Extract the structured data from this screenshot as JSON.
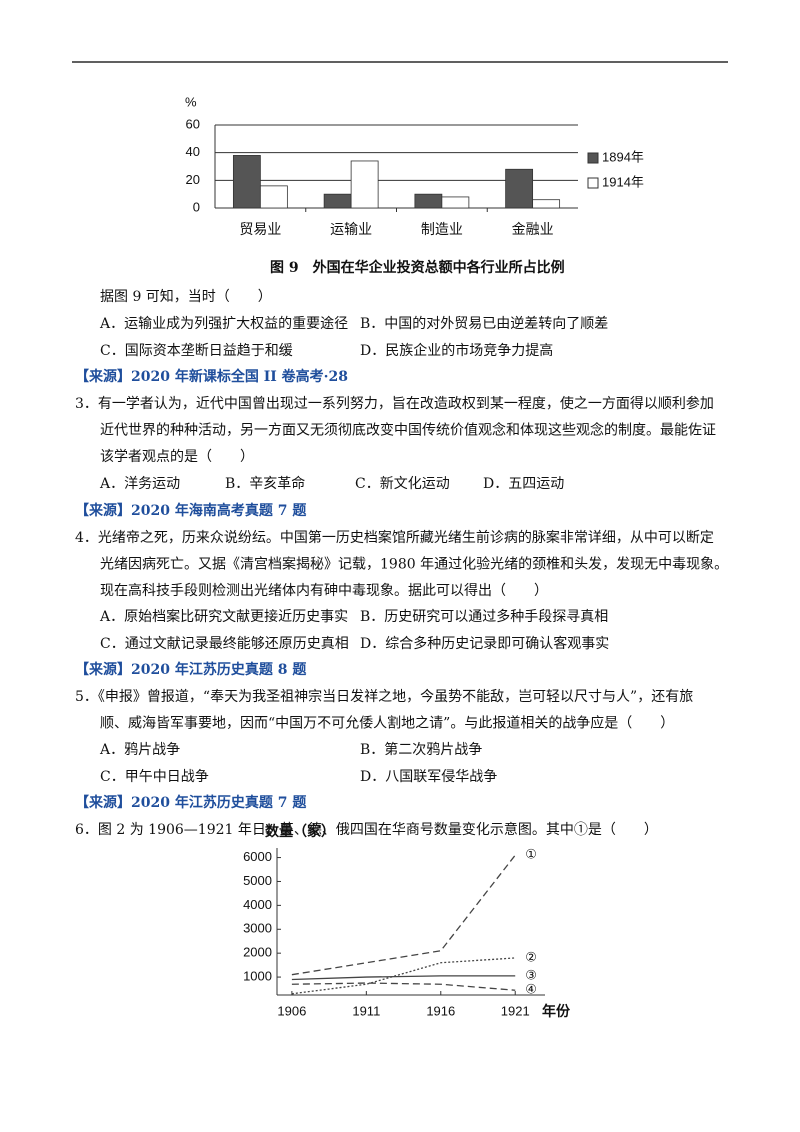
{
  "figure9": {
    "type": "bar",
    "y_label": "%",
    "categories": [
      "贸易业",
      "运输业",
      "制造业",
      "金融业"
    ],
    "series": [
      {
        "name": "1894年",
        "color": "#555555",
        "values": [
          38,
          10,
          10,
          28
        ]
      },
      {
        "name": "1914年",
        "color": "#ffffff",
        "values": [
          16,
          34,
          8,
          6
        ]
      }
    ],
    "ylim": [
      0,
      60
    ],
    "yticks": [
      0,
      20,
      40,
      60
    ],
    "grid": true,
    "caption": "图 9　外国在华企业投资总额中各行业所占比例"
  },
  "q2": {
    "stem": "据图 9 可知，当时（　　）",
    "options": [
      "A．运输业成为列强扩大权益的重要途径",
      "B．中国的对外贸易已由逆差转向了顺差",
      "C．国际资本垄断日益趋于和缓",
      "D．民族企业的市场竞争力提高"
    ],
    "source": "【来源】2020 年新课标全国 II 卷高考·28"
  },
  "q3": {
    "stem": [
      "3．有一学者认为，近代中国曾出现过一系列努力，旨在改造政权到某一程度，使之一方面得以顺利参加",
      "近代世界的种种活动，另一方面又无须彻底改变中国传统价值观念和体现这些观念的制度。最能佐证",
      "该学者观点的是（　　）"
    ],
    "options": [
      "A．洋务运动",
      "B．辛亥革命",
      "C．新文化运动",
      "D．五四运动"
    ],
    "source": "【来源】2020 年海南高考真题 7 题"
  },
  "q4": {
    "stem": [
      "4．光绪帝之死，历来众说纷纭。中国第一历史档案馆所藏光绪生前诊病的脉案非常详细，从中可以断定",
      "光绪因病死亡。又据《清宫档案揭秘》记载，1980 年通过化验光绪的颈椎和头发，发现无中毒现象。",
      "现在高科技手段则检测出光绪体内有砷中毒现象。据此可以得出（　　）"
    ],
    "options": [
      "A．原始档案比研究文献更接近历史事实",
      "B．历史研究可以通过多种手段探寻真相",
      "C．通过文献记录最终能够还原历史真相",
      "D．综合多种历史记录即可确认客观事实"
    ],
    "source": "【来源】2020 年江苏历史真题 8 题"
  },
  "q5": {
    "stem": [
      "5．《申报》曾报道，“奉天为我圣祖神宗当日发祥之地，今虽势不能敌，岂可轻以尺寸与人”，还有旅",
      "顺、威海皆军事要地，因而“中国万不可允倭人割地之请”。与此报道相关的战争应是（　　）"
    ],
    "options": [
      "A．鸦片战争",
      "B．第二次鸦片战争",
      "C．甲午中日战争",
      "D．八国联军侵华战争"
    ],
    "source": "【来源】2020 年江苏历史真题 7 题"
  },
  "q6": {
    "stem": "6．图 2 为 1906—1921 年日、英、德、俄四国在华商号数量变化示意图。其中①是（　　）"
  },
  "figure2": {
    "type": "line",
    "y_label": "数量（家）",
    "x_label": "年份",
    "x": [
      1906,
      1911,
      1916,
      1921
    ],
    "series": [
      {
        "name": "①",
        "color": "#444444",
        "dash": "7,4",
        "values": [
          1100,
          1600,
          2100,
          6100
        ]
      },
      {
        "name": "②",
        "color": "#444444",
        "dash": "2,2",
        "values": [
          300,
          700,
          1600,
          1800
        ]
      },
      {
        "name": "③",
        "color": "#444444",
        "dash": "none",
        "values": [
          900,
          1000,
          1050,
          1050
        ]
      },
      {
        "name": "④",
        "color": "#444444",
        "dash": "7,4",
        "values": [
          700,
          750,
          700,
          450
        ]
      }
    ],
    "xlim": [
      1905,
      1923
    ],
    "xticks": [
      1906,
      1911,
      1916,
      1921
    ],
    "ylim": [
      250,
      6400
    ],
    "yticks": [
      1000,
      2000,
      3000,
      4000,
      5000,
      6000
    ]
  }
}
